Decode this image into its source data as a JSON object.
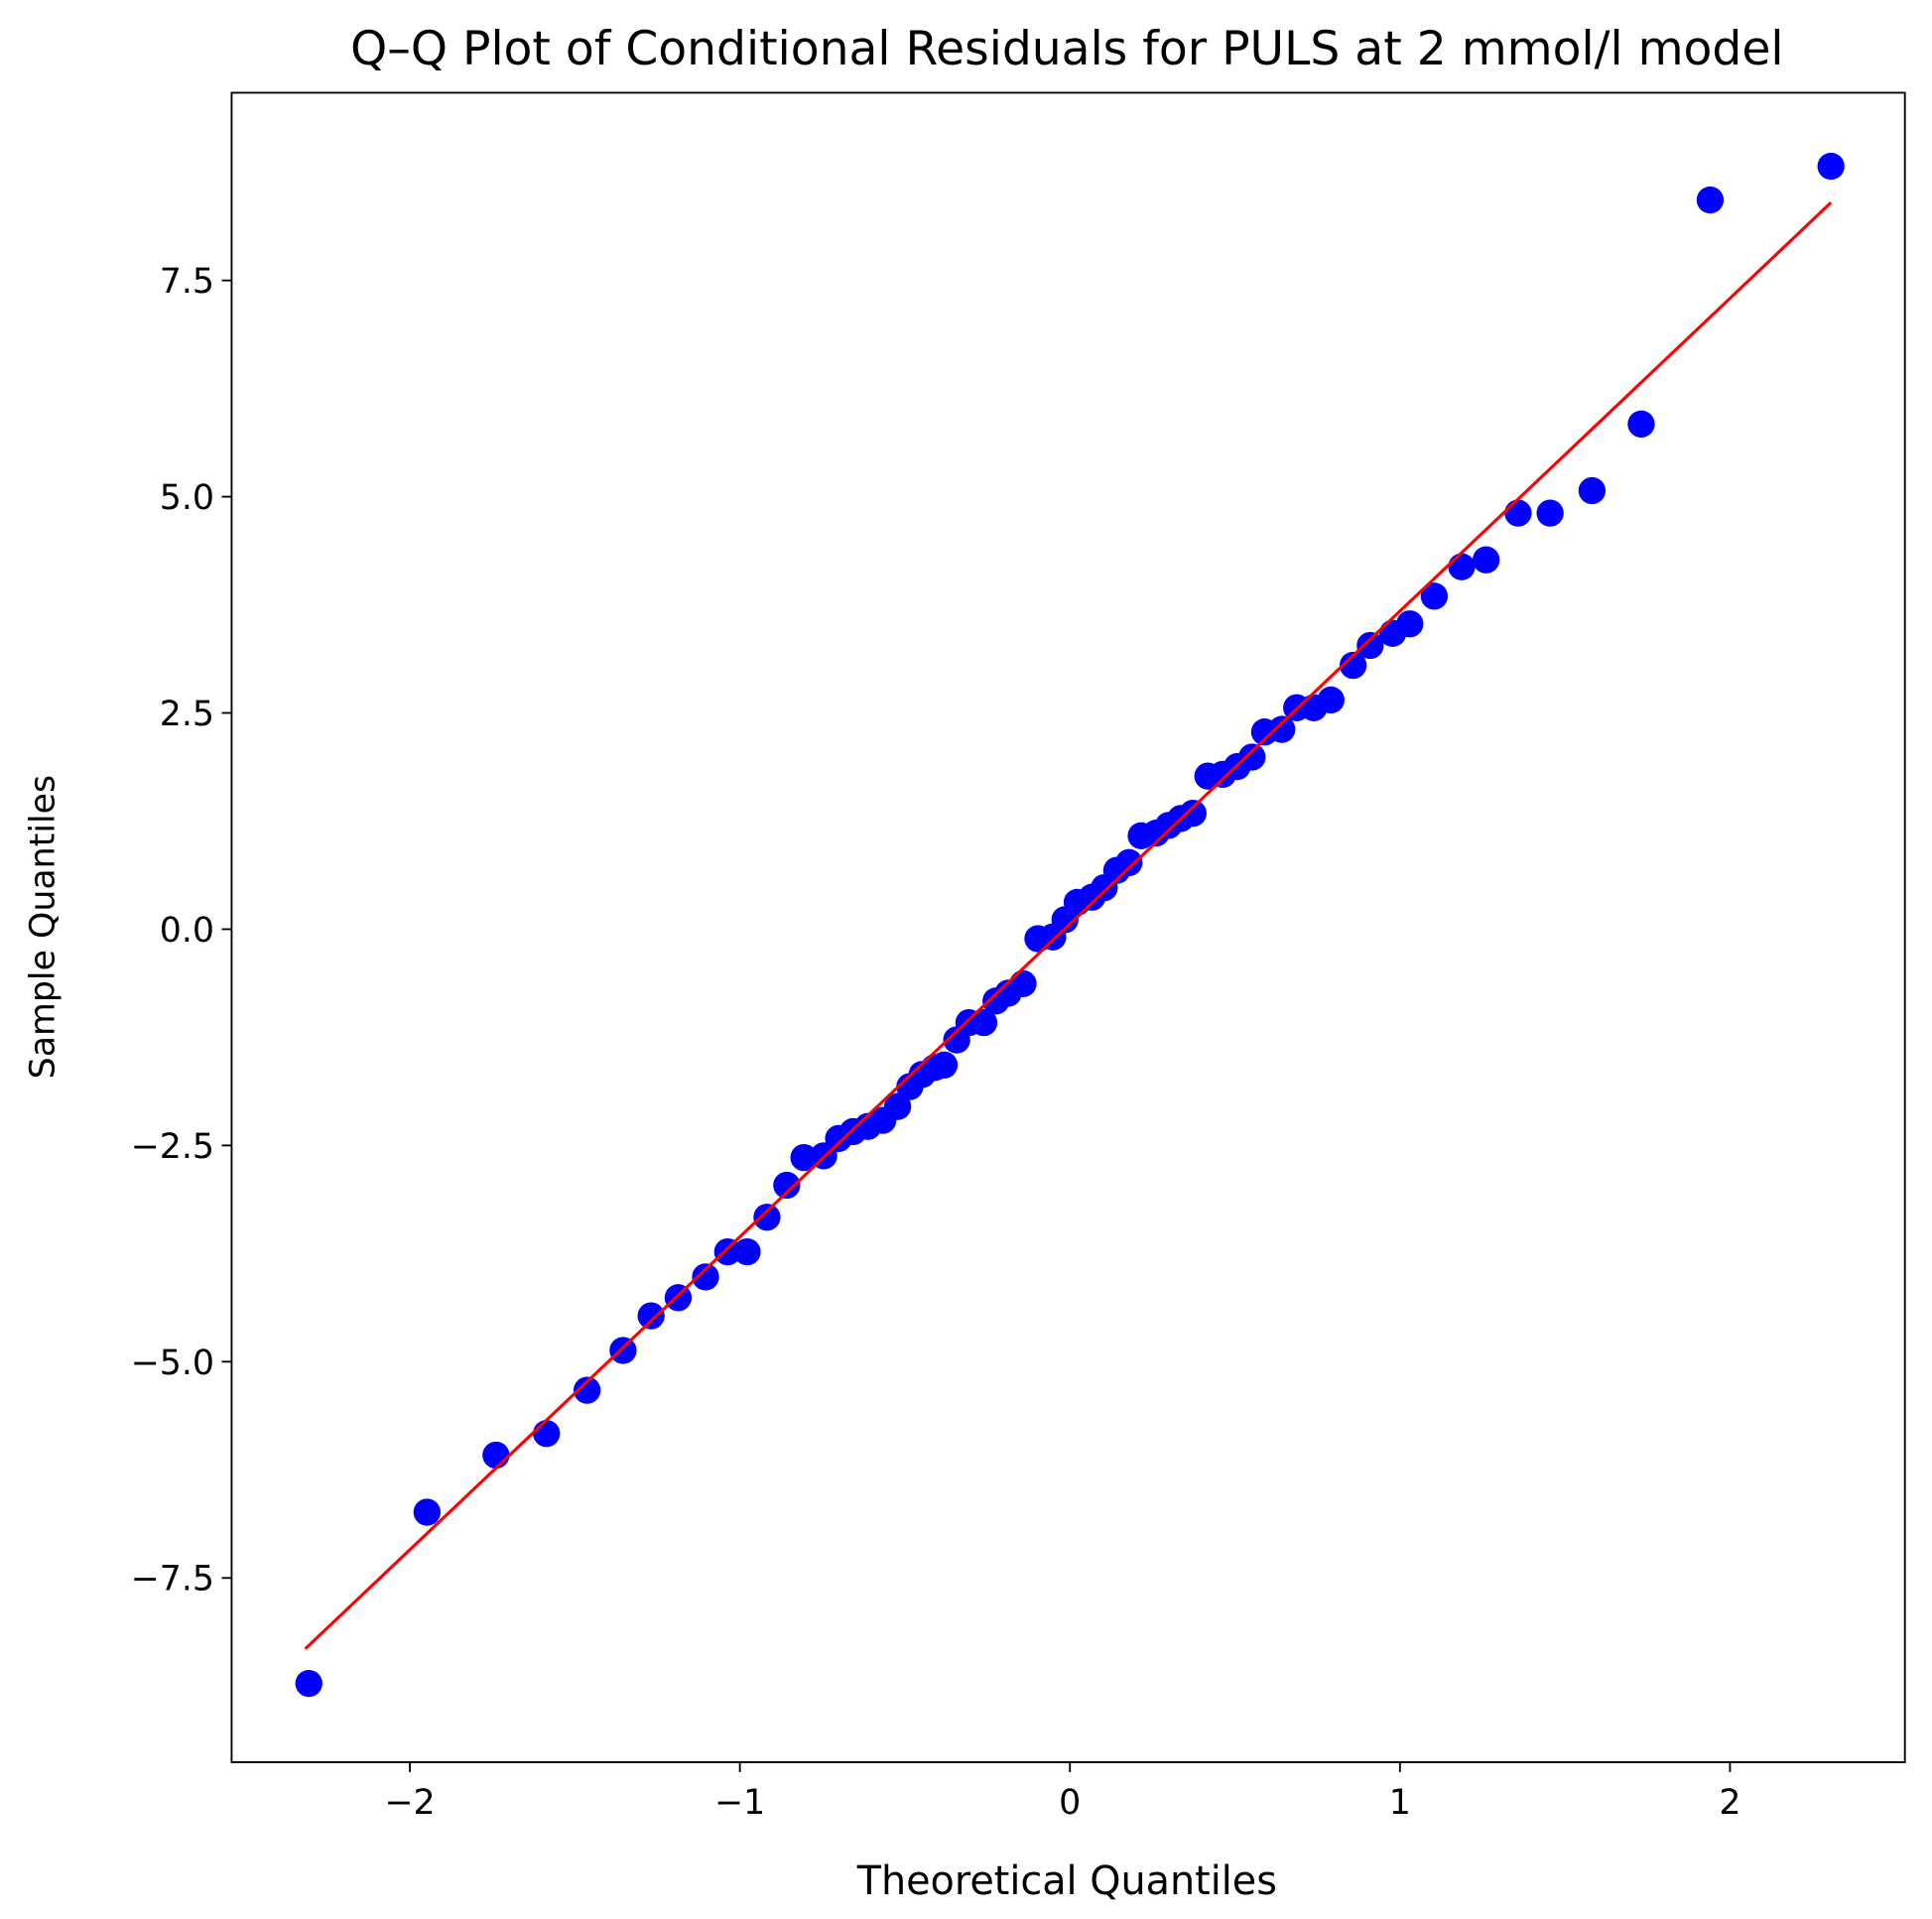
{
  "chart_data": {
    "type": "scatter",
    "title": "Q–Q Plot of Conditional Residuals for PULS at 2 mmol/l model",
    "xlabel": "Theoretical Quantiles",
    "ylabel": "Sample Quantiles",
    "color": "#0000ff",
    "x": [
      -2.306,
      -1.948,
      -1.739,
      -1.586,
      -1.463,
      -1.354,
      -1.269,
      -1.187,
      -1.104,
      -1.037,
      -0.978,
      -0.918,
      -0.858,
      -0.806,
      -0.746,
      -0.701,
      -0.657,
      -0.612,
      -0.567,
      -0.522,
      -0.485,
      -0.448,
      -0.41,
      -0.381,
      -0.343,
      -0.306,
      -0.261,
      -0.224,
      -0.187,
      -0.142,
      -0.097,
      -0.052,
      -0.015,
      0.022,
      0.067,
      0.104,
      0.142,
      0.179,
      0.216,
      0.261,
      0.299,
      0.336,
      0.373,
      0.418,
      0.463,
      0.507,
      0.552,
      0.59,
      0.642,
      0.687,
      0.739,
      0.791,
      0.858,
      0.91,
      0.978,
      1.03,
      1.104,
      1.187,
      1.261,
      1.358,
      1.455,
      1.582,
      1.731,
      1.94,
      2.306
    ],
    "values": [
      -8.72,
      -6.74,
      -6.08,
      -5.83,
      -5.33,
      -4.87,
      -4.47,
      -4.26,
      -4.02,
      -3.73,
      -3.73,
      -3.33,
      -2.96,
      -2.64,
      -2.62,
      -2.42,
      -2.34,
      -2.28,
      -2.21,
      -2.05,
      -1.82,
      -1.68,
      -1.6,
      -1.57,
      -1.28,
      -1.08,
      -1.08,
      -0.83,
      -0.74,
      -0.63,
      -0.11,
      -0.09,
      0.11,
      0.31,
      0.37,
      0.48,
      0.68,
      0.77,
      1.08,
      1.11,
      1.2,
      1.28,
      1.34,
      1.77,
      1.79,
      1.88,
      1.99,
      2.28,
      2.31,
      2.56,
      2.56,
      2.65,
      3.05,
      3.28,
      3.42,
      3.53,
      3.85,
      4.19,
      4.27,
      4.81,
      4.81,
      5.07,
      5.84,
      8.43,
      8.82
    ],
    "line": {
      "color": "#ff0000",
      "x": [
        -2.317,
        2.306
      ],
      "values": [
        -8.32,
        8.4
      ]
    },
    "xlim": [
      -2.54,
      2.53
    ],
    "ylim": [
      -9.63,
      9.67
    ],
    "xticks": [
      {
        "value": -2,
        "label": "−2"
      },
      {
        "value": -1,
        "label": "−1"
      },
      0,
      1,
      2
    ],
    "yticks": [
      {
        "value": -7.5,
        "label": "−7.5"
      },
      {
        "value": -5,
        "label": "−5.0"
      },
      {
        "value": -2.5,
        "label": "−2.5"
      },
      {
        "value": 0,
        "label": "0.0"
      },
      2.5,
      {
        "value": 5,
        "label": "5.0"
      },
      7.5
    ]
  }
}
